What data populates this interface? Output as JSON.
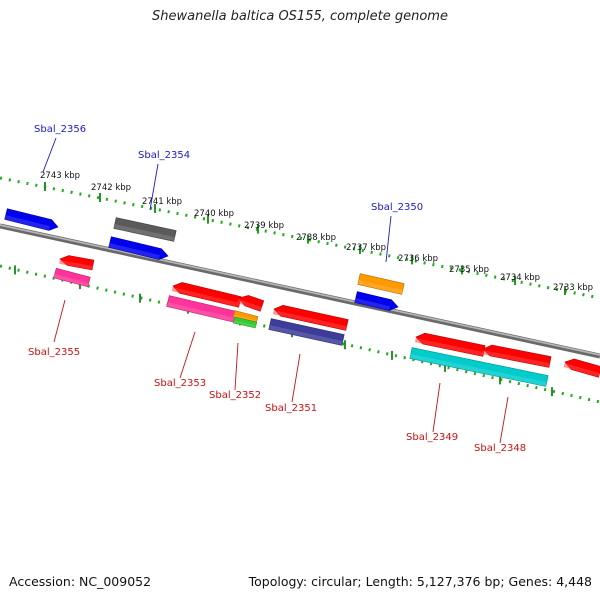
{
  "title": "Shewanella baltica OS155, complete genome",
  "footer": {
    "accession": "Accession: NC_009052",
    "summary": "Topology: circular; Length: 5,127,376 bp; Genes: 4,448"
  },
  "ticks": [
    "2743 kbp",
    "2742 kbp",
    "2741 kbp",
    "2740 kbp",
    "2739 kbp",
    "2738 kbp",
    "2737 kbp",
    "2736 kbp",
    "2735 kbp",
    "2734 kbp",
    "2733 kbp"
  ],
  "upper_labels": [
    "Sbal_2356",
    "Sbal_2354",
    "Sbal_2350"
  ],
  "lower_labels": [
    "Sbal_2355",
    "Sbal_2353",
    "Sbal_2352",
    "Sbal_2351",
    "Sbal_2349",
    "Sbal_2348"
  ],
  "colors": {
    "backbone": "#808080",
    "upper_label": "#1a1acc",
    "lower_label": "#cc1111",
    "tick_dots": "#22aa22",
    "red": "#ff0000",
    "blue": "#0000ee",
    "gray": "#5a5a5a",
    "orange": "#ff9900",
    "pink": "#ff3399",
    "green": "#33cc33",
    "slate": "#3d3d99",
    "cyan": "#00cccc"
  }
}
